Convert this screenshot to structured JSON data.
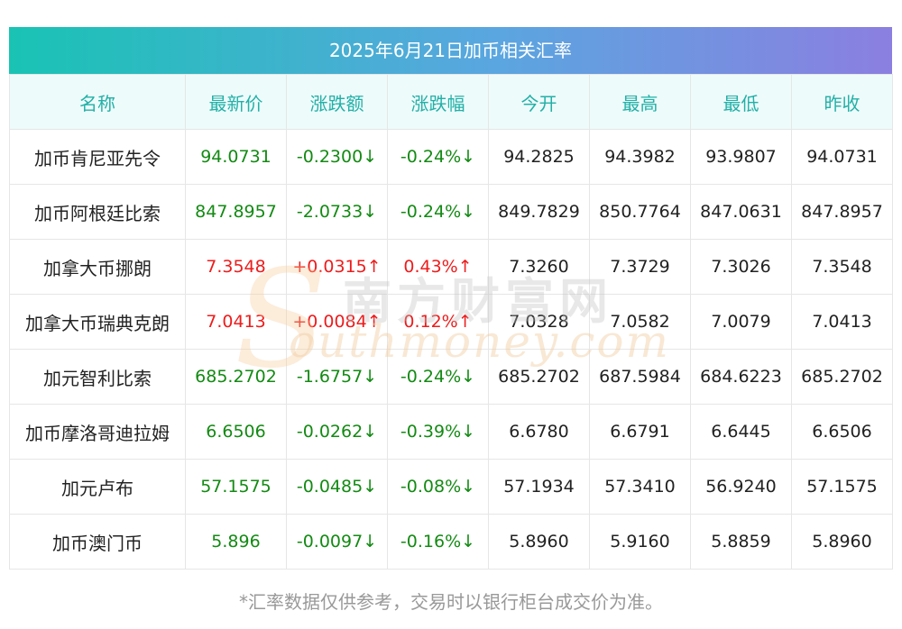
{
  "title": "2025年6月21日加币相关汇率",
  "columns": [
    "名称",
    "最新价",
    "涨跌额",
    "涨跌幅",
    "今开",
    "最高",
    "最低",
    "昨收"
  ],
  "rows": [
    {
      "name": "加币肯尼亚先令",
      "latest": "94.0731",
      "change": "-0.2300↓",
      "pct": "-0.24%↓",
      "open": "94.2825",
      "high": "94.3982",
      "low": "93.9807",
      "prev": "94.0731",
      "dir": "down"
    },
    {
      "name": "加币阿根廷比索",
      "latest": "847.8957",
      "change": "-2.0733↓",
      "pct": "-0.24%↓",
      "open": "849.7829",
      "high": "850.7764",
      "low": "847.0631",
      "prev": "847.8957",
      "dir": "down"
    },
    {
      "name": "加拿大币挪朗",
      "latest": "7.3548",
      "change": "+0.0315↑",
      "pct": "0.43%↑",
      "open": "7.3260",
      "high": "7.3729",
      "low": "7.3026",
      "prev": "7.3548",
      "dir": "up"
    },
    {
      "name": "加拿大币瑞典克朗",
      "latest": "7.0413",
      "change": "+0.0084↑",
      "pct": "0.12%↑",
      "open": "7.0328",
      "high": "7.0582",
      "low": "7.0079",
      "prev": "7.0413",
      "dir": "up"
    },
    {
      "name": "加元智利比索",
      "latest": "685.2702",
      "change": "-1.6757↓",
      "pct": "-0.24%↓",
      "open": "685.2702",
      "high": "687.5984",
      "low": "684.6223",
      "prev": "685.2702",
      "dir": "down"
    },
    {
      "name": "加币摩洛哥迪拉姆",
      "latest": "6.6506",
      "change": "-0.0262↓",
      "pct": "-0.39%↓",
      "open": "6.6780",
      "high": "6.6791",
      "low": "6.6445",
      "prev": "6.6506",
      "dir": "down"
    },
    {
      "name": "加元卢布",
      "latest": "57.1575",
      "change": "-0.0485↓",
      "pct": "-0.08%↓",
      "open": "57.1934",
      "high": "57.3410",
      "low": "56.9240",
      "prev": "57.1575",
      "dir": "down"
    },
    {
      "name": "加币澳门币",
      "latest": "5.896",
      "change": "-0.0097↓",
      "pct": "-0.16%↓",
      "open": "5.8960",
      "high": "5.9160",
      "low": "5.8859",
      "prev": "5.8960",
      "dir": "down"
    }
  ],
  "footnote": "*汇率数据仅供参考，交易时以银行柜台成交价为准。",
  "watermark": {
    "top": "南方财富网",
    "bottom": "outhmoney.com",
    "letter": "S"
  },
  "colors": {
    "up": "#ee1c1c",
    "down": "#138a13",
    "header_text": "#22b0a7",
    "gradient_start": "#19c3b4",
    "gradient_end": "#8b7fe0"
  }
}
